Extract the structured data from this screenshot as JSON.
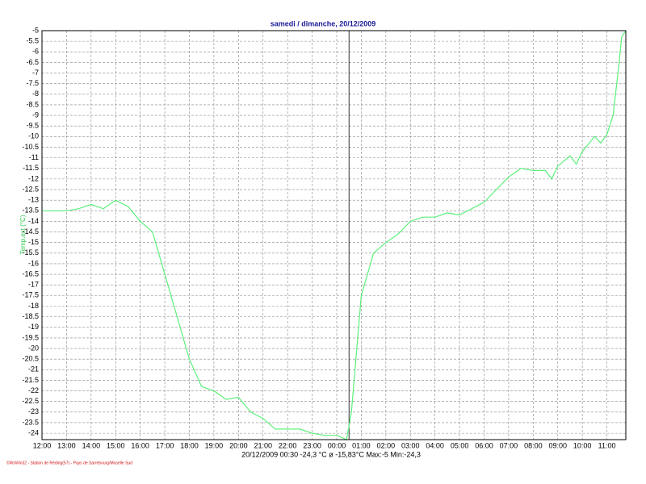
{
  "chart_data": {
    "type": "line",
    "title": "samedi / dimanche, 20/12/2009",
    "y_label": "Temp.ext  (°C)",
    "status": "20/12/2009  00:30   -24,3 °C   ø -15,83°C  Max:-5  Min:-24,3",
    "footer": "©WsWin32  -  Station de Réding(57)  -  Pays de Sarrebourg/Moselle Sud",
    "cursor_x": 12.5,
    "grid": true,
    "color": "#5cf07c",
    "xlim": [
      0,
      23.77
    ],
    "ylim": [
      -24.3,
      -5
    ],
    "xticks": [
      {
        "value": 0,
        "label": "12:00"
      },
      {
        "value": 1,
        "label": "13:00"
      },
      {
        "value": 2,
        "label": "14:00"
      },
      {
        "value": 3,
        "label": "15:00"
      },
      {
        "value": 4,
        "label": "16:00"
      },
      {
        "value": 5,
        "label": "17:00"
      },
      {
        "value": 6,
        "label": "18:00"
      },
      {
        "value": 7,
        "label": "19:00"
      },
      {
        "value": 8,
        "label": "20:00"
      },
      {
        "value": 9,
        "label": "21:00"
      },
      {
        "value": 10,
        "label": "22:00"
      },
      {
        "value": 11,
        "label": "23:00"
      },
      {
        "value": 12,
        "label": "00:00"
      },
      {
        "value": 13,
        "label": "01:00"
      },
      {
        "value": 14,
        "label": "02:00"
      },
      {
        "value": 15,
        "label": "03:00"
      },
      {
        "value": 16,
        "label": "04:00"
      },
      {
        "value": 17,
        "label": "05:00"
      },
      {
        "value": 18,
        "label": "06:00"
      },
      {
        "value": 19,
        "label": "07:00"
      },
      {
        "value": 20,
        "label": "08:00"
      },
      {
        "value": 21,
        "label": "09:00"
      },
      {
        "value": 22,
        "label": "10:00"
      },
      {
        "value": 23,
        "label": "11:00"
      }
    ],
    "yticks": [
      -5,
      -5.5,
      -6,
      -6.5,
      -7,
      -7.5,
      -8,
      -8.5,
      -9,
      -9.5,
      -10,
      -10.5,
      -11,
      -11.5,
      -12,
      -12.5,
      -13,
      -13.5,
      -14,
      -14.5,
      -15,
      -15.5,
      -16,
      -16.5,
      -17,
      -17.5,
      -18,
      -18.5,
      -19,
      -19.5,
      -20,
      -20.5,
      -21,
      -21.5,
      -22,
      -22.5,
      -23,
      -23.5,
      -24
    ],
    "x": [
      0,
      0.5,
      1,
      1.5,
      2,
      2.5,
      3,
      3.5,
      4,
      4.5,
      5,
      5.5,
      6,
      6.5,
      7,
      7.5,
      8,
      8.5,
      9,
      9.5,
      10,
      10.5,
      11,
      11.5,
      12,
      12.4,
      12.6,
      13,
      13.5,
      14,
      14.5,
      15,
      15.5,
      16,
      16.5,
      17,
      17.5,
      18,
      18.5,
      19,
      19.5,
      20,
      20.5,
      20.75,
      21,
      21.5,
      21.75,
      22,
      22.5,
      22.75,
      23,
      23.25,
      23.5,
      23.6,
      23.77
    ],
    "values": [
      -13.5,
      -13.5,
      -13.5,
      -13.4,
      -13.2,
      -13.4,
      -13.0,
      -13.3,
      -14.0,
      -14.5,
      -16.5,
      -18.5,
      -20.5,
      -21.8,
      -22.0,
      -22.4,
      -22.3,
      -23.0,
      -23.3,
      -23.8,
      -23.8,
      -23.8,
      -24.0,
      -24.1,
      -24.1,
      -24.3,
      -23.0,
      -17.5,
      -15.5,
      -15.0,
      -14.6,
      -14.0,
      -13.8,
      -13.8,
      -13.6,
      -13.7,
      -13.4,
      -13.1,
      -12.5,
      -11.9,
      -11.5,
      -11.6,
      -11.6,
      -12.0,
      -11.4,
      -10.9,
      -11.3,
      -10.7,
      -10.0,
      -10.3,
      -9.9,
      -9.0,
      -6.5,
      -5.3,
      -5.0
    ]
  }
}
